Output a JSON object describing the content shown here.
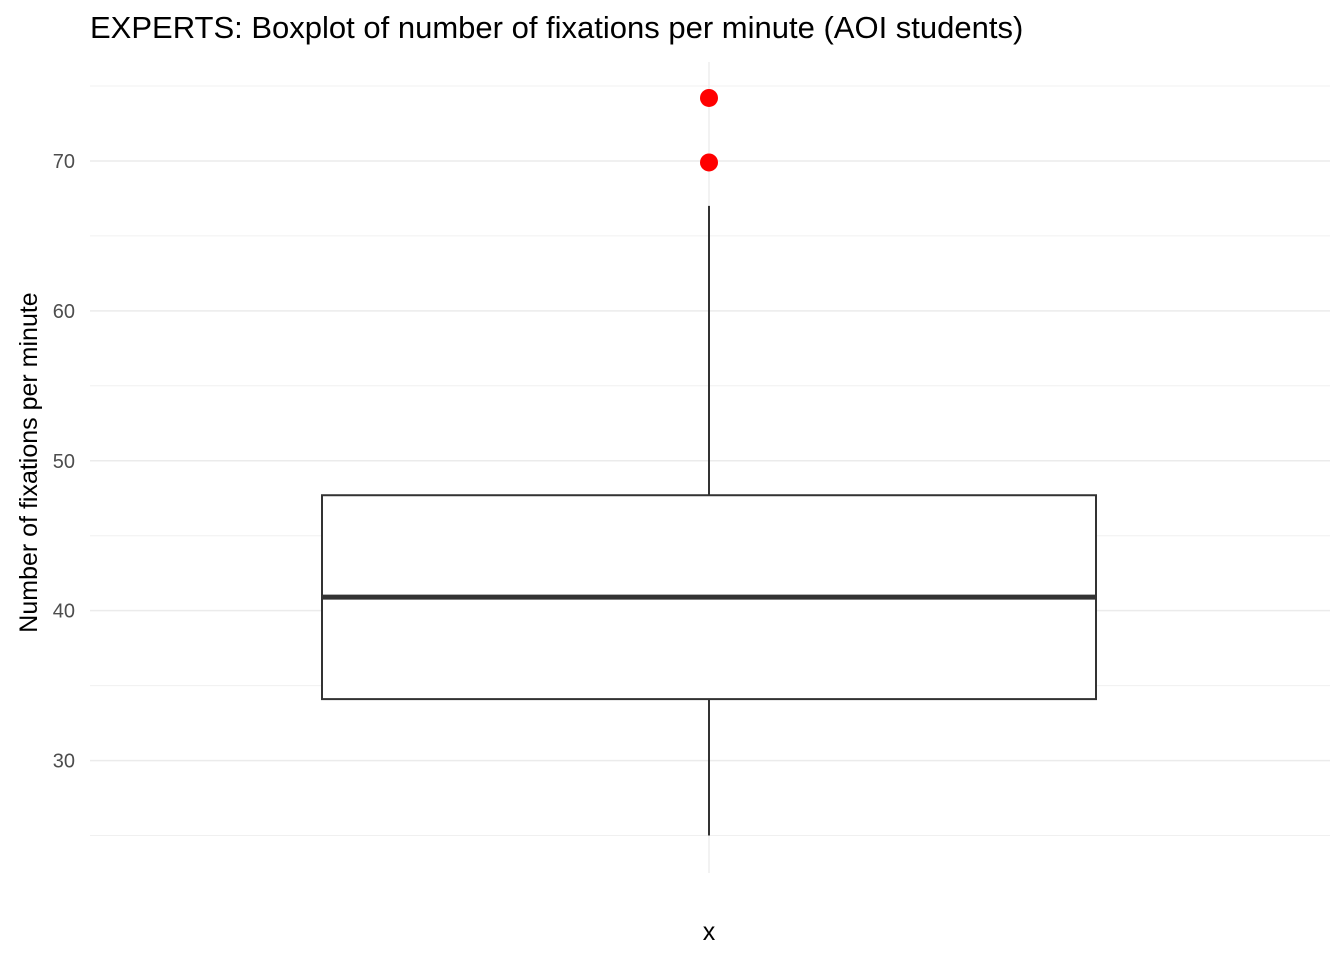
{
  "chart_data": {
    "type": "boxplot",
    "title": "EXPERTS: Boxplot of number of fixations per minute (AOI students)",
    "xlabel": "x",
    "ylabel": "Number of fixations per minute",
    "ylim": [
      22.5,
      76.6
    ],
    "y_ticks": [
      30,
      40,
      50,
      60,
      70
    ],
    "grid": true,
    "box": {
      "whisker_low": 25.0,
      "q1": 34.1,
      "median": 40.9,
      "q3": 47.7,
      "whisker_high": 67.0
    },
    "outliers": [
      69.9,
      74.2
    ],
    "colors": {
      "outlier": "#ff0000",
      "box_stroke": "#333333",
      "grid": "#ebebeb"
    }
  }
}
